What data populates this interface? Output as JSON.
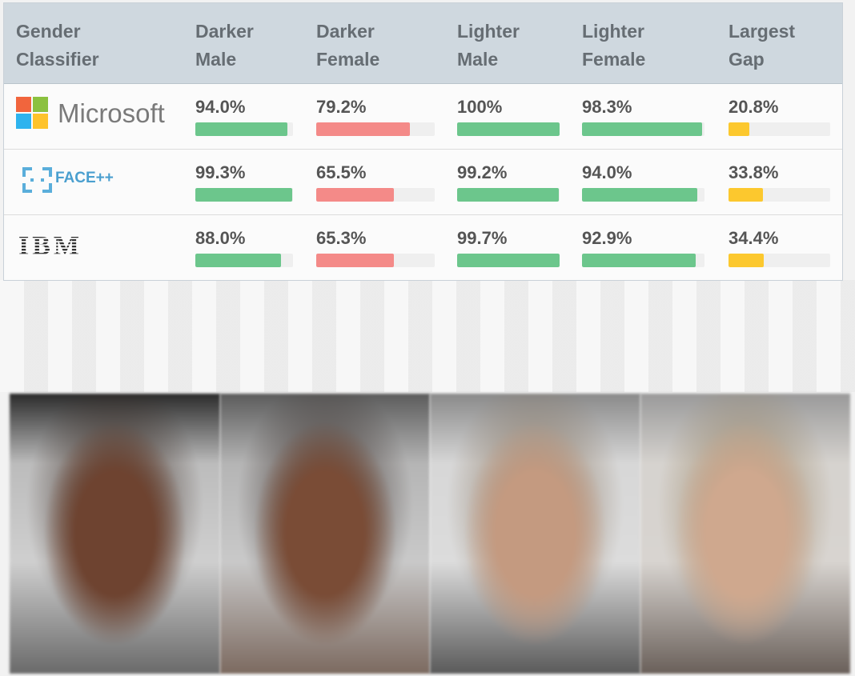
{
  "chart_data": {
    "type": "table",
    "columns": [
      "Gender Classifier",
      "Darker Male",
      "Darker Female",
      "Lighter Male",
      "Lighter Female",
      "Largest Gap"
    ],
    "header_lines": [
      [
        "Gender",
        "Classifier"
      ],
      [
        "Darker",
        "Male"
      ],
      [
        "Darker",
        "Female"
      ],
      [
        "Lighter",
        "Male"
      ],
      [
        "Lighter",
        "Female"
      ],
      [
        "Largest",
        "Gap"
      ]
    ],
    "rows": [
      {
        "classifier": "Microsoft",
        "values": [
          94.0,
          79.2,
          100,
          98.3,
          20.8
        ],
        "labels": [
          "94.0%",
          "79.2%",
          "100%",
          "98.3%",
          "20.8%"
        ]
      },
      {
        "classifier": "FACE++",
        "values": [
          99.3,
          65.5,
          99.2,
          94.0,
          33.8
        ],
        "labels": [
          "99.3%",
          "65.5%",
          "99.2%",
          "94.0%",
          "33.8%"
        ]
      },
      {
        "classifier": "IBM",
        "values": [
          88.0,
          65.3,
          99.7,
          92.9,
          34.4
        ],
        "labels": [
          "88.0%",
          "65.3%",
          "99.7%",
          "92.9%",
          "34.4%"
        ]
      }
    ],
    "bar_colors": [
      "#6cc68c",
      "#f48a88",
      "#6cc68c",
      "#6cc68c",
      "#fcc82e"
    ],
    "gap_scale_max": 100
  },
  "faces": [
    "darker-male",
    "darker-female",
    "lighter-male",
    "lighter-female"
  ]
}
